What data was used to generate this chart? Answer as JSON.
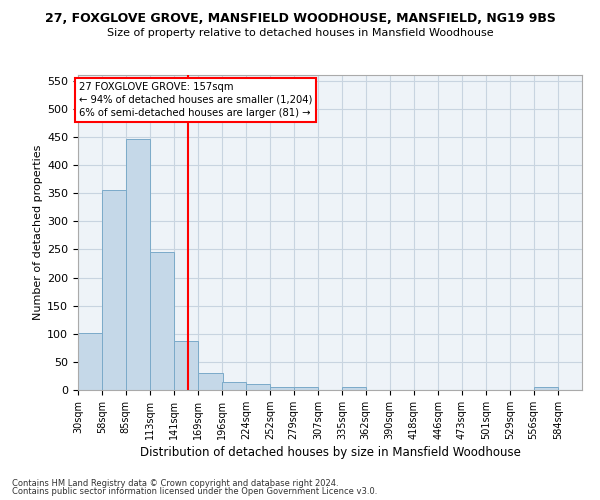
{
  "title1": "27, FOXGLOVE GROVE, MANSFIELD WOODHOUSE, MANSFIELD, NG19 9BS",
  "title2": "Size of property relative to detached houses in Mansfield Woodhouse",
  "xlabel": "Distribution of detached houses by size in Mansfield Woodhouse",
  "ylabel": "Number of detached properties",
  "footer1": "Contains HM Land Registry data © Crown copyright and database right 2024.",
  "footer2": "Contains public sector information licensed under the Open Government Licence v3.0.",
  "bin_labels": [
    "30sqm",
    "58sqm",
    "85sqm",
    "113sqm",
    "141sqm",
    "169sqm",
    "196sqm",
    "224sqm",
    "252sqm",
    "279sqm",
    "307sqm",
    "335sqm",
    "362sqm",
    "390sqm",
    "418sqm",
    "446sqm",
    "473sqm",
    "501sqm",
    "529sqm",
    "556sqm",
    "584sqm"
  ],
  "bar_values": [
    102,
    356,
    446,
    246,
    88,
    30,
    14,
    10,
    6,
    5,
    0,
    5,
    0,
    0,
    0,
    0,
    0,
    0,
    0,
    5,
    0
  ],
  "bar_color": "#c5d8e8",
  "bar_edge_color": "#7baac9",
  "grid_color": "#c8d4e0",
  "background_color": "#eef3f8",
  "red_line_x": 157,
  "bin_edges": [
    30,
    58,
    85,
    113,
    141,
    169,
    196,
    224,
    252,
    279,
    307,
    335,
    362,
    390,
    418,
    446,
    473,
    501,
    529,
    556,
    584,
    612
  ],
  "annotation_line1": "27 FOXGLOVE GROVE: 157sqm",
  "annotation_line2": "← 94% of detached houses are smaller (1,204)",
  "annotation_line3": "6% of semi-detached houses are larger (81) →",
  "ylim": [
    0,
    560
  ],
  "yticks": [
    0,
    50,
    100,
    150,
    200,
    250,
    300,
    350,
    400,
    450,
    500,
    550
  ]
}
